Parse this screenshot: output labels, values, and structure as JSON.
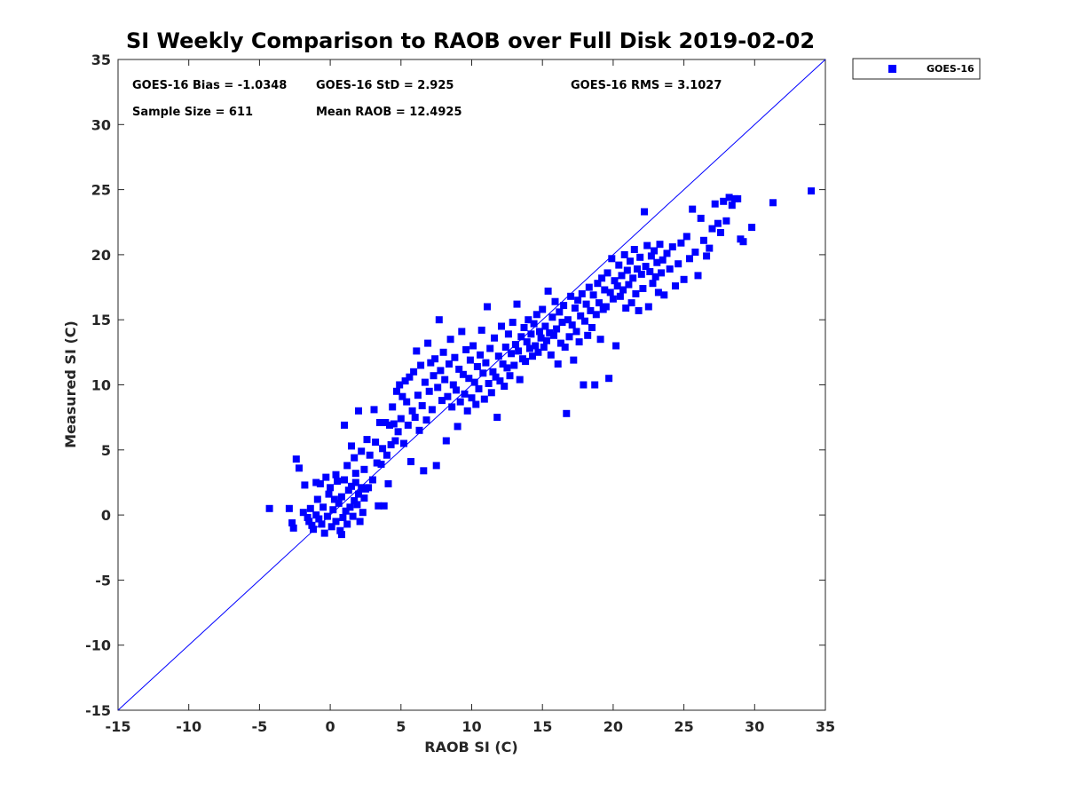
{
  "chart_data": {
    "type": "scatter",
    "title": "SI Weekly Comparison to RAOB over Full Disk 2019-02-02",
    "xlabel": "RAOB SI (C)",
    "ylabel": "Measured SI (C)",
    "xlim": [
      -15,
      35
    ],
    "ylim": [
      -15,
      35
    ],
    "xticks": [
      "-15",
      "-10",
      "-5",
      "0",
      "5",
      "10",
      "15",
      "20",
      "25",
      "30",
      "35"
    ],
    "yticks": [
      "-15",
      "-10",
      "-5",
      "0",
      "5",
      "10",
      "15",
      "20",
      "25",
      "30",
      "35"
    ],
    "reference_line": {
      "type": "one-to-one",
      "from": [
        -15,
        -15
      ],
      "to": [
        35,
        35
      ],
      "color": "#0000ff"
    },
    "legend": {
      "placement": "outside-top-right",
      "entries": [
        "GOES-16"
      ]
    },
    "stats": {
      "bias": "GOES-16 Bias = -1.0348",
      "std": "GOES-16 StD = 2.925",
      "rms": "GOES-16 RMS = 3.1027",
      "sample": "Sample Size = 611",
      "mean": "Mean RAOB = 12.4925"
    },
    "series": [
      {
        "name": "GOES-16",
        "color": "#0000ff",
        "marker": "square",
        "points": [
          [
            -4.3,
            0.5
          ],
          [
            -2.9,
            0.5
          ],
          [
            -2.7,
            -0.6
          ],
          [
            -2.6,
            -1.0
          ],
          [
            -2.4,
            4.3
          ],
          [
            -2.2,
            3.6
          ],
          [
            -1.9,
            0.2
          ],
          [
            -1.8,
            2.3
          ],
          [
            -1.6,
            -0.2
          ],
          [
            -1.5,
            -0.5
          ],
          [
            -1.4,
            0.5
          ],
          [
            -1.3,
            -0.8
          ],
          [
            -1.2,
            -1.1
          ],
          [
            -1.0,
            2.5
          ],
          [
            -1.0,
            0.0
          ],
          [
            -0.9,
            1.2
          ],
          [
            -0.8,
            -0.3
          ],
          [
            -0.7,
            2.4
          ],
          [
            -0.6,
            -0.7
          ],
          [
            -0.5,
            0.6
          ],
          [
            -0.4,
            -1.4
          ],
          [
            -0.3,
            2.9
          ],
          [
            -0.2,
            -0.1
          ],
          [
            -0.1,
            1.6
          ],
          [
            0.0,
            2.1
          ],
          [
            0.1,
            -0.9
          ],
          [
            0.2,
            0.4
          ],
          [
            0.3,
            1.2
          ],
          [
            0.4,
            -0.5
          ],
          [
            0.5,
            2.6
          ],
          [
            0.6,
            0.9
          ],
          [
            0.7,
            -1.2
          ],
          [
            0.8,
            1.4
          ],
          [
            0.9,
            -0.2
          ],
          [
            1.0,
            2.7
          ],
          [
            1.1,
            0.3
          ],
          [
            1.2,
            -0.7
          ],
          [
            1.3,
            1.9
          ],
          [
            1.4,
            0.6
          ],
          [
            1.5,
            2.2
          ],
          [
            1.6,
            -0.1
          ],
          [
            1.7,
            1.1
          ],
          [
            1.8,
            2.5
          ],
          [
            1.9,
            0.8
          ],
          [
            2.0,
            1.6
          ],
          [
            2.1,
            -0.5
          ],
          [
            2.2,
            2.1
          ],
          [
            2.3,
            0.2
          ],
          [
            2.4,
            1.3
          ],
          [
            2.5,
            2.0
          ],
          [
            0.4,
            3.1
          ],
          [
            0.8,
            -1.5
          ],
          [
            1.0,
            6.9
          ],
          [
            1.2,
            3.8
          ],
          [
            1.5,
            5.3
          ],
          [
            1.7,
            4.4
          ],
          [
            1.8,
            3.2
          ],
          [
            2.0,
            8.0
          ],
          [
            2.2,
            4.9
          ],
          [
            2.4,
            3.5
          ],
          [
            2.6,
            5.8
          ],
          [
            2.7,
            2.1
          ],
          [
            2.8,
            4.6
          ],
          [
            3.0,
            2.7
          ],
          [
            3.1,
            8.1
          ],
          [
            3.2,
            5.6
          ],
          [
            3.3,
            4.0
          ],
          [
            3.4,
            0.7
          ],
          [
            3.5,
            7.1
          ],
          [
            3.6,
            3.9
          ],
          [
            3.7,
            5.1
          ],
          [
            3.8,
            0.7
          ],
          [
            3.9,
            7.1
          ],
          [
            4.0,
            4.6
          ],
          [
            4.1,
            2.4
          ],
          [
            4.2,
            6.9
          ],
          [
            4.3,
            5.4
          ],
          [
            4.4,
            8.3
          ],
          [
            4.5,
            7.0
          ],
          [
            4.6,
            5.7
          ],
          [
            4.7,
            9.5
          ],
          [
            4.8,
            6.4
          ],
          [
            4.9,
            10.0
          ],
          [
            5.0,
            7.4
          ],
          [
            5.1,
            9.1
          ],
          [
            5.2,
            5.5
          ],
          [
            5.3,
            10.3
          ],
          [
            5.4,
            8.7
          ],
          [
            5.5,
            6.9
          ],
          [
            5.6,
            10.6
          ],
          [
            5.7,
            4.1
          ],
          [
            5.8,
            8.0
          ],
          [
            5.9,
            11.0
          ],
          [
            6.0,
            7.5
          ],
          [
            6.1,
            12.6
          ],
          [
            6.2,
            9.2
          ],
          [
            6.3,
            6.5
          ],
          [
            6.4,
            11.5
          ],
          [
            6.5,
            8.4
          ],
          [
            6.6,
            3.4
          ],
          [
            6.7,
            10.2
          ],
          [
            6.8,
            7.3
          ],
          [
            6.9,
            13.2
          ],
          [
            7.0,
            9.5
          ],
          [
            7.1,
            11.7
          ],
          [
            7.2,
            8.1
          ],
          [
            7.3,
            10.7
          ],
          [
            7.4,
            12.0
          ],
          [
            7.5,
            3.8
          ],
          [
            7.6,
            9.8
          ],
          [
            7.7,
            15.0
          ],
          [
            7.8,
            11.1
          ],
          [
            7.9,
            8.8
          ],
          [
            8.0,
            12.5
          ],
          [
            8.1,
            10.4
          ],
          [
            8.2,
            5.7
          ],
          [
            8.3,
            9.1
          ],
          [
            8.4,
            11.6
          ],
          [
            8.5,
            13.5
          ],
          [
            8.6,
            8.3
          ],
          [
            8.7,
            10.0
          ],
          [
            8.8,
            12.1
          ],
          [
            8.9,
            9.6
          ],
          [
            9.0,
            6.8
          ],
          [
            9.1,
            11.2
          ],
          [
            9.2,
            8.7
          ],
          [
            9.3,
            14.1
          ],
          [
            9.4,
            10.8
          ],
          [
            9.5,
            9.3
          ],
          [
            9.6,
            12.7
          ],
          [
            9.7,
            8.0
          ],
          [
            9.8,
            10.5
          ],
          [
            9.9,
            11.9
          ],
          [
            10.0,
            9.0
          ],
          [
            10.1,
            13.0
          ],
          [
            10.2,
            10.2
          ],
          [
            10.3,
            8.5
          ],
          [
            10.4,
            11.4
          ],
          [
            10.5,
            9.7
          ],
          [
            10.6,
            12.3
          ],
          [
            10.7,
            14.2
          ],
          [
            10.8,
            10.9
          ],
          [
            10.9,
            8.9
          ],
          [
            11.0,
            11.7
          ],
          [
            11.1,
            16.0
          ],
          [
            11.2,
            10.1
          ],
          [
            11.3,
            12.8
          ],
          [
            11.4,
            9.4
          ],
          [
            11.5,
            11.0
          ],
          [
            11.6,
            13.6
          ],
          [
            11.7,
            10.6
          ],
          [
            11.8,
            7.5
          ],
          [
            11.9,
            12.2
          ],
          [
            12.0,
            10.3
          ],
          [
            12.1,
            14.5
          ],
          [
            12.2,
            11.6
          ],
          [
            12.3,
            9.9
          ],
          [
            12.4,
            12.9
          ],
          [
            12.5,
            11.3
          ],
          [
            12.6,
            13.9
          ],
          [
            12.7,
            10.7
          ],
          [
            12.8,
            12.4
          ],
          [
            12.9,
            14.8
          ],
          [
            13.0,
            11.5
          ],
          [
            13.1,
            13.1
          ],
          [
            13.2,
            16.2
          ],
          [
            13.3,
            12.6
          ],
          [
            13.4,
            10.4
          ],
          [
            13.5,
            13.7
          ],
          [
            13.6,
            12.0
          ],
          [
            13.7,
            14.4
          ],
          [
            13.8,
            11.8
          ],
          [
            13.9,
            13.3
          ],
          [
            14.0,
            15.0
          ],
          [
            14.1,
            12.8
          ],
          [
            14.2,
            13.9
          ],
          [
            14.3,
            12.2
          ],
          [
            14.4,
            14.7
          ],
          [
            14.5,
            13.0
          ],
          [
            14.6,
            15.4
          ],
          [
            14.7,
            12.5
          ],
          [
            14.8,
            14.1
          ],
          [
            14.9,
            13.6
          ],
          [
            15.0,
            15.8
          ],
          [
            15.1,
            12.9
          ],
          [
            15.2,
            14.5
          ],
          [
            15.3,
            13.4
          ],
          [
            15.4,
            17.2
          ],
          [
            15.5,
            14.0
          ],
          [
            15.6,
            12.3
          ],
          [
            15.7,
            15.2
          ],
          [
            15.8,
            13.8
          ],
          [
            15.9,
            16.4
          ],
          [
            16.0,
            14.3
          ],
          [
            16.1,
            11.6
          ],
          [
            16.2,
            15.6
          ],
          [
            16.3,
            13.2
          ],
          [
            16.4,
            14.8
          ],
          [
            16.5,
            16.1
          ],
          [
            16.6,
            12.9
          ],
          [
            16.7,
            7.8
          ],
          [
            16.8,
            15.0
          ],
          [
            16.9,
            13.7
          ],
          [
            17.0,
            16.8
          ],
          [
            17.1,
            14.6
          ],
          [
            17.2,
            11.9
          ],
          [
            17.3,
            15.9
          ],
          [
            17.4,
            14.1
          ],
          [
            17.5,
            16.5
          ],
          [
            17.6,
            13.3
          ],
          [
            17.7,
            15.3
          ],
          [
            17.8,
            17.0
          ],
          [
            17.9,
            10.0
          ],
          [
            18.0,
            14.9
          ],
          [
            18.1,
            16.2
          ],
          [
            18.2,
            13.8
          ],
          [
            18.3,
            17.5
          ],
          [
            18.4,
            15.7
          ],
          [
            18.5,
            14.4
          ],
          [
            18.6,
            16.9
          ],
          [
            18.7,
            10.0
          ],
          [
            18.8,
            15.4
          ],
          [
            18.9,
            17.8
          ],
          [
            19.0,
            16.3
          ],
          [
            19.1,
            13.5
          ],
          [
            19.2,
            18.2
          ],
          [
            19.3,
            15.8
          ],
          [
            19.4,
            17.3
          ],
          [
            19.5,
            16.0
          ],
          [
            19.6,
            18.6
          ],
          [
            19.7,
            10.5
          ],
          [
            19.8,
            17.1
          ],
          [
            19.9,
            19.7
          ],
          [
            20.0,
            16.6
          ],
          [
            20.1,
            18.0
          ],
          [
            20.2,
            13.0
          ],
          [
            20.3,
            17.6
          ],
          [
            20.4,
            19.2
          ],
          [
            20.5,
            16.8
          ],
          [
            20.6,
            18.4
          ],
          [
            20.7,
            17.3
          ],
          [
            20.8,
            20.0
          ],
          [
            20.9,
            15.9
          ],
          [
            21.0,
            18.8
          ],
          [
            21.1,
            17.7
          ],
          [
            21.2,
            19.5
          ],
          [
            21.3,
            16.3
          ],
          [
            21.4,
            18.2
          ],
          [
            21.5,
            20.4
          ],
          [
            21.6,
            17.0
          ],
          [
            21.7,
            18.9
          ],
          [
            21.8,
            15.7
          ],
          [
            21.9,
            19.8
          ],
          [
            22.0,
            18.5
          ],
          [
            22.1,
            17.4
          ],
          [
            22.2,
            23.3
          ],
          [
            22.3,
            19.1
          ],
          [
            22.4,
            20.7
          ],
          [
            22.5,
            16.0
          ],
          [
            22.6,
            18.7
          ],
          [
            22.7,
            19.9
          ],
          [
            22.8,
            17.8
          ],
          [
            22.9,
            20.3
          ],
          [
            23.0,
            18.3
          ],
          [
            23.1,
            19.4
          ],
          [
            23.2,
            17.1
          ],
          [
            23.3,
            20.8
          ],
          [
            23.4,
            18.6
          ],
          [
            23.5,
            19.6
          ],
          [
            23.6,
            16.9
          ],
          [
            23.8,
            20.1
          ],
          [
            24.0,
            18.9
          ],
          [
            24.2,
            20.6
          ],
          [
            24.4,
            17.6
          ],
          [
            24.6,
            19.3
          ],
          [
            24.8,
            20.9
          ],
          [
            25.0,
            18.1
          ],
          [
            25.2,
            21.4
          ],
          [
            25.4,
            19.7
          ],
          [
            25.6,
            23.5
          ],
          [
            25.8,
            20.2
          ],
          [
            26.0,
            18.4
          ],
          [
            26.2,
            22.8
          ],
          [
            26.4,
            21.1
          ],
          [
            26.6,
            19.9
          ],
          [
            26.8,
            20.5
          ],
          [
            27.0,
            22.0
          ],
          [
            27.2,
            23.9
          ],
          [
            27.4,
            22.4
          ],
          [
            27.6,
            21.7
          ],
          [
            27.8,
            24.1
          ],
          [
            28.0,
            22.6
          ],
          [
            28.2,
            24.4
          ],
          [
            28.4,
            23.8
          ],
          [
            28.6,
            24.3
          ],
          [
            28.8,
            24.3
          ],
          [
            29.0,
            21.2
          ],
          [
            29.2,
            21.0
          ],
          [
            29.8,
            22.1
          ],
          [
            31.3,
            24.0
          ],
          [
            34.0,
            24.9
          ]
        ]
      }
    ]
  }
}
